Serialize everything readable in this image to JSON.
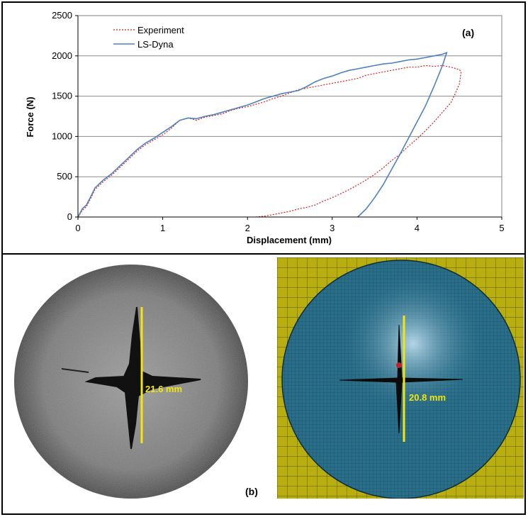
{
  "chart_data": {
    "type": "line",
    "panel_label": "(a)",
    "xlabel": "Displacement (mm)",
    "ylabel": "Force (N)",
    "xlim": [
      0,
      5
    ],
    "ylim": [
      0,
      2500
    ],
    "x_ticks": [
      "0",
      "1",
      "2",
      "3",
      "4",
      "5"
    ],
    "y_ticks": [
      "0",
      "500",
      "1000",
      "1500",
      "2000",
      "2500"
    ],
    "grid": "horizontal",
    "legend_position": "top-left",
    "series": [
      {
        "name": "Experiment",
        "color": "#d42020",
        "style": "dotted",
        "x": [
          0,
          0.05,
          0.1,
          0.15,
          0.2,
          0.3,
          0.4,
          0.5,
          0.6,
          0.7,
          0.8,
          0.9,
          1.0,
          1.1,
          1.2,
          1.3,
          1.4,
          1.5,
          1.6,
          1.7,
          1.8,
          1.9,
          2.0,
          2.1,
          2.2,
          2.3,
          2.4,
          2.5,
          2.6,
          2.7,
          2.8,
          2.9,
          3.0,
          3.1,
          3.2,
          3.3,
          3.4,
          3.5,
          3.6,
          3.7,
          3.8,
          3.9,
          4.0,
          4.1,
          4.2,
          4.3,
          4.4,
          4.5,
          4.52,
          4.5,
          4.45,
          4.4,
          4.3,
          4.2,
          4.1,
          4.0,
          3.9,
          3.8,
          3.7,
          3.6,
          3.5,
          3.4,
          3.3,
          3.2,
          3.1,
          3.0,
          2.9,
          2.8,
          2.7,
          2.6,
          2.5,
          2.4,
          2.3,
          2.2,
          2.1
        ],
        "y": [
          0,
          80,
          130,
          230,
          340,
          440,
          520,
          620,
          720,
          820,
          900,
          960,
          1020,
          1100,
          1200,
          1230,
          1200,
          1240,
          1260,
          1280,
          1320,
          1350,
          1370,
          1400,
          1430,
          1470,
          1500,
          1540,
          1580,
          1600,
          1620,
          1640,
          1660,
          1680,
          1700,
          1720,
          1760,
          1780,
          1800,
          1820,
          1840,
          1860,
          1860,
          1880,
          1870,
          1880,
          1860,
          1830,
          1800,
          1650,
          1530,
          1420,
          1300,
          1180,
          1070,
          970,
          880,
          780,
          700,
          610,
          530,
          460,
          400,
          340,
          290,
          240,
          200,
          150,
          120,
          100,
          70,
          50,
          30,
          10,
          0
        ]
      },
      {
        "name": "LS-Dyna",
        "color": "#4f81bd",
        "style": "solid",
        "x": [
          0,
          0.05,
          0.1,
          0.15,
          0.2,
          0.3,
          0.4,
          0.5,
          0.6,
          0.7,
          0.8,
          0.9,
          1.0,
          1.1,
          1.2,
          1.3,
          1.4,
          1.5,
          1.6,
          1.7,
          1.8,
          1.9,
          2.0,
          2.1,
          2.2,
          2.3,
          2.4,
          2.5,
          2.6,
          2.7,
          2.8,
          2.9,
          3.0,
          3.1,
          3.2,
          3.3,
          3.4,
          3.5,
          3.6,
          3.7,
          3.8,
          3.9,
          4.0,
          4.1,
          4.2,
          4.3,
          4.35,
          4.3,
          4.2,
          4.1,
          4.0,
          3.9,
          3.8,
          3.7,
          3.6,
          3.5,
          3.4,
          3.3
        ],
        "y": [
          0,
          100,
          150,
          250,
          360,
          460,
          540,
          640,
          740,
          840,
          920,
          980,
          1050,
          1120,
          1200,
          1230,
          1220,
          1250,
          1270,
          1300,
          1330,
          1360,
          1390,
          1430,
          1470,
          1500,
          1530,
          1550,
          1570,
          1620,
          1680,
          1720,
          1750,
          1790,
          1820,
          1840,
          1860,
          1880,
          1900,
          1910,
          1930,
          1950,
          1960,
          1980,
          2000,
          2020,
          2040,
          1880,
          1620,
          1380,
          1180,
          980,
          780,
          590,
          400,
          240,
          100,
          0
        ]
      }
    ]
  },
  "panel_b": {
    "label": "(b)",
    "experiment_measure": "21.6 mm",
    "simulation_measure": "20.8 mm"
  },
  "colors": {
    "sim_background": "#b8ae10",
    "sim_disk": "#2a6f8a",
    "measure_line": "#f2e60f"
  }
}
